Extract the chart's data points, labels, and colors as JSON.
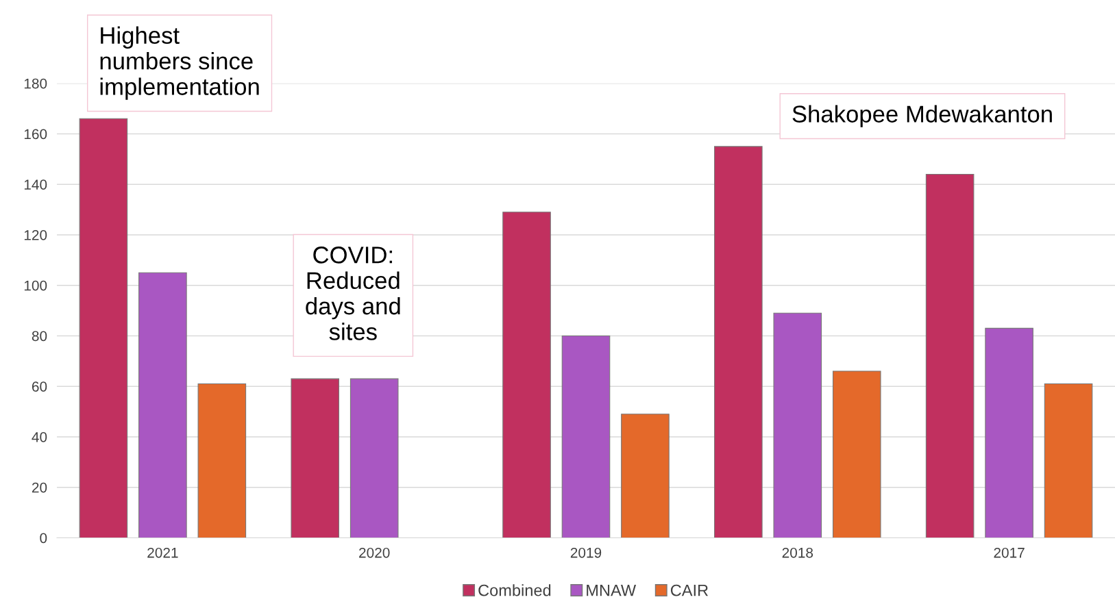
{
  "chart_data": {
    "type": "bar",
    "categories": [
      "2021",
      "2020",
      "2019",
      "2018",
      "2017"
    ],
    "series": [
      {
        "name": "Combined",
        "color": "#c1305f",
        "values": [
          166,
          63,
          129,
          155,
          144
        ]
      },
      {
        "name": "MNAW",
        "color": "#a957c2",
        "values": [
          105,
          63,
          80,
          89,
          83
        ]
      },
      {
        "name": "CAIR",
        "color": "#e4692a",
        "values": [
          61,
          null,
          49,
          66,
          61
        ]
      }
    ],
    "ylim": [
      0,
      180
    ],
    "yticks": [
      0,
      20,
      40,
      60,
      80,
      100,
      120,
      140,
      160,
      180
    ],
    "grid": "y",
    "legend": "bottom",
    "annotations": [
      "Highest numbers since implementation",
      "COVID: Reduced days and sites",
      "Shakopee Mdewakanton"
    ]
  }
}
